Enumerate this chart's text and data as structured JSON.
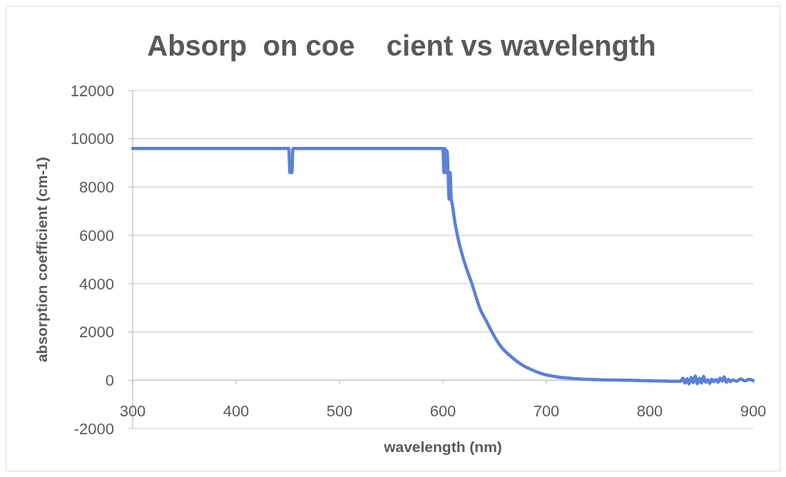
{
  "chart_data": {
    "type": "line",
    "title": "Absorp  on coe    cient vs wavelength",
    "xlabel": "wavelength (nm)",
    "ylabel": "absorption coefficient (cm-1)",
    "x": [
      300,
      451,
      452,
      453,
      454,
      455,
      600,
      601,
      602,
      603,
      604,
      605,
      606,
      607,
      608,
      609,
      611,
      614,
      620,
      628,
      636,
      642,
      648,
      656,
      664,
      675,
      685,
      694,
      710,
      730,
      750,
      780,
      800,
      830,
      832,
      834,
      836,
      838,
      840,
      842,
      844,
      846,
      848,
      850,
      852,
      854,
      856,
      858,
      860,
      862,
      864,
      866,
      868,
      870,
      872,
      874,
      876,
      878,
      880,
      884,
      888,
      892,
      896,
      900
    ],
    "series": [
      {
        "color": "#5b80d6",
        "values": [
          9600,
          9600,
          8600,
          8600,
          8600,
          9600,
          9600,
          8600,
          9600,
          8600,
          9500,
          8600,
          7500,
          8600,
          7500,
          7300,
          6700,
          6000,
          5000,
          4000,
          2950,
          2450,
          1950,
          1400,
          1050,
          680,
          450,
          290,
          140,
          60,
          20,
          0,
          -20,
          -40,
          80,
          -120,
          60,
          -150,
          120,
          -100,
          180,
          -150,
          80,
          -120,
          160,
          -80,
          20,
          -130,
          40,
          -60,
          30,
          -90,
          90,
          -40,
          140,
          -90,
          40,
          -60,
          10,
          -40,
          50,
          -30,
          40,
          -10
        ]
      }
    ],
    "xlim": [
      300,
      900
    ],
    "ylim": [
      -2000,
      12000
    ],
    "xticks": [
      300,
      400,
      500,
      600,
      700,
      800,
      900
    ],
    "yticks": [
      -2000,
      0,
      2000,
      4000,
      6000,
      8000,
      10000,
      12000
    ],
    "grid": "y"
  }
}
